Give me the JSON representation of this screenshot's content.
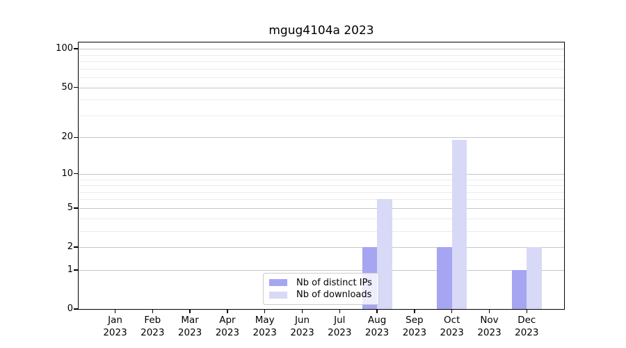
{
  "chart_data": {
    "type": "bar",
    "title": "mgug4104a 2023",
    "categories": [
      "Jan",
      "Feb",
      "Mar",
      "Apr",
      "May",
      "Jun",
      "Jul",
      "Aug",
      "Sep",
      "Oct",
      "Nov",
      "Dec"
    ],
    "x_tick_year": "2023",
    "series": [
      {
        "name": "Nb of distinct IPs",
        "color": "#a5a5f2",
        "values": [
          0,
          0,
          0,
          0,
          0,
          0,
          0,
          2,
          0,
          2,
          0,
          1
        ]
      },
      {
        "name": "Nb of downloads",
        "color": "#d8d8f7",
        "values": [
          0,
          0,
          0,
          0,
          0,
          0,
          0,
          6,
          0,
          19,
          0,
          2
        ]
      }
    ],
    "yscale": "log1p",
    "y_ticks": [
      0,
      1,
      2,
      5,
      10,
      20,
      50,
      100
    ],
    "y_minor_gridlines": [
      3,
      4,
      6,
      7,
      8,
      9,
      30,
      40,
      60,
      70,
      80,
      90
    ],
    "ylim": [
      0,
      112
    ],
    "grid": "on",
    "legend_position": "lower center",
    "colors": {
      "major_grid": "#c6c6c6",
      "minor_grid": "#ebebeb",
      "spine": "#000000",
      "background": "#ffffff"
    }
  }
}
